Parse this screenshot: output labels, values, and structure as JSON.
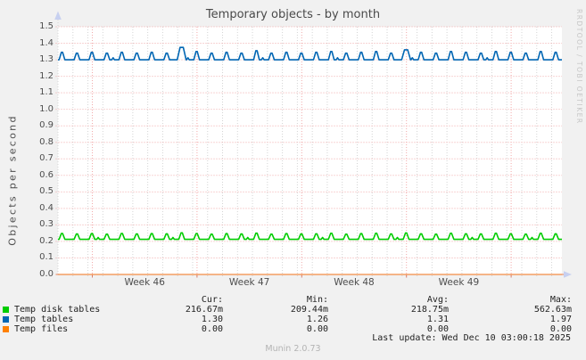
{
  "title": "Temporary objects - by month",
  "ylabel": "Objects per second",
  "watermark": "RRDTOOL / TOBI OETIKER",
  "last_update": "Last update: Wed Dec 10 03:00:18 2025",
  "footer_version": "Munin 2.0.73",
  "legend": {
    "headers": [
      "Cur:",
      "Min:",
      "Avg:",
      "Max:"
    ],
    "rows": [
      {
        "label": "Temp disk tables",
        "color": "#00cc00",
        "values": [
          "216.67m",
          "209.44m",
          "218.75m",
          "562.63m"
        ]
      },
      {
        "label": "Temp tables",
        "color": "#0066b3",
        "values": [
          "1.30",
          "1.26",
          "1.31",
          "1.97"
        ]
      },
      {
        "label": "Temp files",
        "color": "#ff8000",
        "values": [
          "0.00",
          "0.00",
          "0.00",
          "0.00"
        ]
      }
    ]
  },
  "chart_data": {
    "type": "line",
    "title": "Temporary objects - by month",
    "ylabel": "Objects per second",
    "ylim": [
      0.0,
      1.5
    ],
    "y_ticks": [
      "0.0",
      "0.1",
      "0.2",
      "0.3",
      "0.4",
      "0.5",
      "0.6",
      "0.7",
      "0.8",
      "0.9",
      "1.0",
      "1.1",
      "1.2",
      "1.3",
      "1.4",
      "1.5"
    ],
    "x_labels": [
      "Week 46",
      "Week 47",
      "Week 48",
      "Week 49"
    ],
    "grid": true,
    "legend_position": "bottom",
    "series": [
      {
        "name": "Temp disk tables",
        "color": "#00cc00",
        "baseline": 0.213,
        "daily_peaks": [
          0.248,
          0.245,
          0.247,
          0.244,
          0.248,
          0.245,
          0.247,
          0.246,
          0.252,
          0.247,
          0.244,
          0.247,
          0.245,
          0.25,
          0.244,
          0.247,
          0.245,
          0.246,
          0.249,
          0.244,
          0.247,
          0.249,
          0.245,
          0.251,
          0.246,
          0.244,
          0.249,
          0.246,
          0.245,
          0.249,
          0.246,
          0.244,
          0.249,
          0.246
        ],
        "bump_days": [
          2,
          7,
          12,
          17,
          22,
          27,
          31
        ],
        "bump_value": 0.224,
        "stats": {
          "cur": "216.67m",
          "min": "209.44m",
          "avg": "218.75m",
          "max": "562.63m"
        }
      },
      {
        "name": "Temp tables",
        "color": "#0066b3",
        "baseline": 1.3,
        "daily_peaks": [
          1.345,
          1.34,
          1.345,
          1.34,
          1.345,
          1.34,
          1.345,
          1.34,
          1.375,
          1.35,
          1.34,
          1.345,
          1.34,
          1.355,
          1.34,
          1.345,
          1.34,
          1.345,
          1.35,
          1.34,
          1.345,
          1.35,
          1.34,
          1.36,
          1.345,
          1.34,
          1.35,
          1.345,
          1.34,
          1.35,
          1.345,
          1.34,
          1.35,
          1.345
        ],
        "bump_days": [
          3,
          8,
          13,
          18,
          23,
          28
        ],
        "bump_value": 1.312,
        "stats": {
          "cur": "1.30",
          "min": "1.26",
          "avg": "1.31",
          "max": "1.97"
        }
      },
      {
        "name": "Temp files",
        "color": "#ff8000",
        "baseline": 0.0,
        "daily_peaks": [],
        "bump_days": [],
        "bump_value": 0.0,
        "stats": {
          "cur": "0.00",
          "min": "0.00",
          "avg": "0.00",
          "max": "0.00"
        }
      }
    ]
  },
  "colors": {
    "background": "#f1f1f1",
    "plot_background": "#ffffff",
    "grid_major": "#f2aaaa",
    "grid_minor": "#d4d4d4",
    "axis": "#e9967a",
    "arrow": "#c7d0f0",
    "week_tick": "#d97a6a",
    "text": "#4d4d4d"
  }
}
